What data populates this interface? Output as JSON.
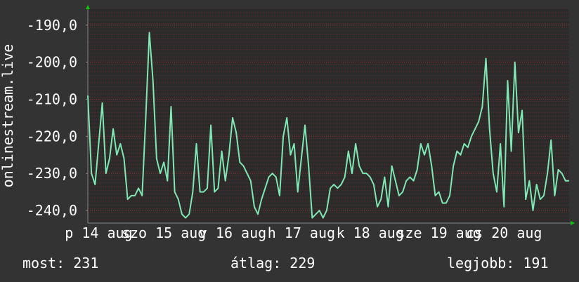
{
  "chart_data": {
    "type": "line",
    "y_label": "onlinestream.live",
    "ylim": [
      -243.4,
      -185.5
    ],
    "yticks": [
      {
        "value": -190,
        "label": "-190,0"
      },
      {
        "value": -200,
        "label": "-200,0"
      },
      {
        "value": -210,
        "label": "-210,0"
      },
      {
        "value": -220,
        "label": "-220,0"
      },
      {
        "value": -230,
        "label": "-230,0"
      },
      {
        "value": -240,
        "label": "-240,0"
      }
    ],
    "grid": true,
    "categories": [
      null,
      null,
      null,
      "p 14 aug",
      null,
      null,
      null,
      null,
      null,
      null,
      null,
      null,
      null,
      null,
      null,
      null,
      null,
      null,
      null,
      null,
      null,
      "szo 15 aug",
      null,
      null,
      null,
      null,
      null,
      null,
      null,
      null,
      null,
      null,
      null,
      null,
      null,
      null,
      null,
      null,
      null,
      null,
      "v 16 aug",
      null,
      null,
      null,
      null,
      null,
      null,
      null,
      null,
      null,
      null,
      null,
      null,
      null,
      null,
      null,
      null,
      null,
      null,
      "h 17 aug",
      null,
      null,
      null,
      null,
      null,
      null,
      null,
      null,
      null,
      null,
      null,
      null,
      null,
      null,
      null,
      null,
      null,
      null,
      "k 18 aug",
      null,
      null,
      null,
      null,
      null,
      null,
      null,
      null,
      null,
      null,
      null,
      null,
      null,
      null,
      null,
      null,
      null,
      null,
      "sze 19 aug",
      null,
      null,
      null,
      null,
      null,
      null,
      null,
      null,
      null,
      null,
      null,
      null,
      null,
      null,
      null,
      null,
      null,
      "cs 20 aug",
      null,
      null,
      null,
      null,
      null,
      null,
      null,
      null,
      null,
      null,
      null,
      null,
      null,
      null,
      null,
      null,
      null,
      null
    ],
    "series": [
      {
        "color": "#7ee8b2",
        "values": [
          -209,
          -230,
          -233,
          -222,
          -211,
          -230,
          -226,
          -218,
          -225,
          -222,
          -226,
          -237,
          -236,
          -236,
          -234,
          -236,
          -215,
          -192,
          -205,
          -226,
          -230,
          -227,
          -232,
          -212,
          -235,
          -237,
          -241,
          -242,
          -241,
          -235,
          -222,
          -235,
          -235,
          -234,
          -217,
          -235,
          -234,
          -224,
          -232,
          -225,
          -215,
          -219,
          -227,
          -228,
          -230,
          -232,
          -239,
          -241,
          -237,
          -234,
          -231,
          -230,
          -231,
          -236,
          -220,
          -215,
          -225,
          -222,
          -235,
          -226,
          -217,
          -228,
          -242,
          -241,
          -240,
          -242,
          -240,
          -234,
          -233,
          -234,
          -233,
          -231,
          -224,
          -230,
          -222,
          -228,
          -230,
          -230,
          -231,
          -233,
          -239,
          -237,
          -231,
          -239,
          -228,
          -232,
          -236,
          -235,
          -232,
          -231,
          -232,
          -229,
          -222,
          -225,
          -222,
          -228,
          -236,
          -235,
          -238,
          -238,
          -236,
          -228,
          -224,
          -225,
          -222,
          -223,
          -220,
          -218,
          -216,
          -212,
          -199,
          -218,
          -230,
          -235,
          -222,
          -239,
          -205,
          -224,
          -200,
          -219,
          -213,
          -237,
          -232,
          -240,
          -233,
          -237,
          -236,
          -230,
          -221,
          -236,
          -229,
          -230,
          -232,
          -232
        ]
      }
    ],
    "stats": [
      "most: 231",
      "átlag: 229",
      "legjobb: 191"
    ]
  }
}
